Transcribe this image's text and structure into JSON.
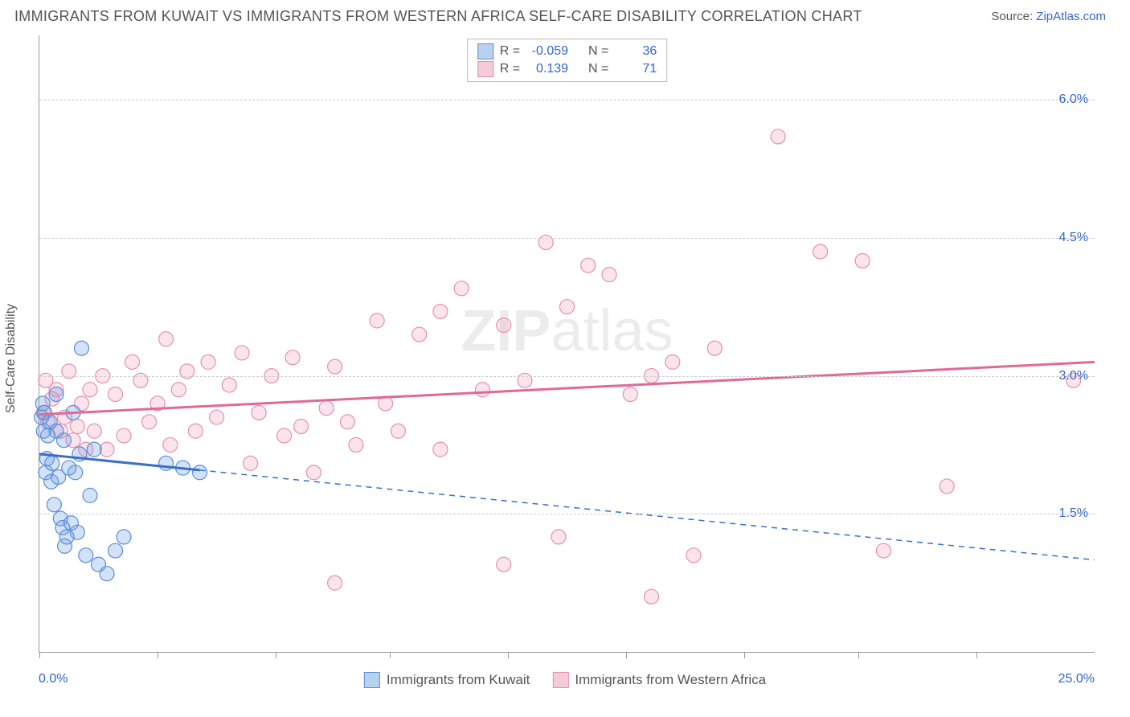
{
  "title": "IMMIGRANTS FROM KUWAIT VS IMMIGRANTS FROM WESTERN AFRICA SELF-CARE DISABILITY CORRELATION CHART",
  "source_label": "Source:",
  "source_name": "ZipAtlas.com",
  "watermark_left": "ZIP",
  "watermark_right": "atlas",
  "ylabel": "Self-Care Disability",
  "chart": {
    "type": "scatter",
    "xlim": [
      0,
      25
    ],
    "ylim": [
      0,
      6.7
    ],
    "y_ticks": [
      1.5,
      3.0,
      4.5,
      6.0
    ],
    "y_tick_labels": [
      "1.5%",
      "3.0%",
      "4.5%",
      "6.0%"
    ],
    "x_ticks": [
      0,
      2.8,
      5.6,
      8.3,
      11.1,
      13.9,
      16.7,
      19.4,
      22.2
    ],
    "xmin_label": "0.0%",
    "xmax_label": "25.0%",
    "background_color": "#ffffff",
    "grid_color": "#cccccc",
    "axis_color": "#999999",
    "label_color": "#3366cc",
    "text_color": "#555555",
    "marker_radius": 9,
    "marker_stroke_width": 1.2,
    "series": [
      {
        "name": "Immigrants from Kuwait",
        "fill": "rgba(100,150,230,0.28)",
        "stroke": "#5b8fd6",
        "legend_swatch_fill": "#b9d1f0",
        "legend_swatch_border": "#5b8fd6",
        "R": "-0.059",
        "N": "36",
        "trend": {
          "y_at_x0": 2.15,
          "y_at_x25": 1.0,
          "solid_until_x": 3.8,
          "stroke": "#3b6fc8",
          "width": 3
        },
        "points": [
          [
            0.05,
            2.55
          ],
          [
            0.08,
            2.7
          ],
          [
            0.1,
            2.4
          ],
          [
            0.12,
            2.6
          ],
          [
            0.15,
            1.95
          ],
          [
            0.18,
            2.1
          ],
          [
            0.2,
            2.35
          ],
          [
            0.25,
            2.5
          ],
          [
            0.28,
            1.85
          ],
          [
            0.3,
            2.05
          ],
          [
            0.35,
            1.6
          ],
          [
            0.4,
            2.4
          ],
          [
            0.4,
            2.8
          ],
          [
            0.45,
            1.9
          ],
          [
            0.5,
            1.45
          ],
          [
            0.55,
            1.35
          ],
          [
            0.58,
            2.3
          ],
          [
            0.6,
            1.15
          ],
          [
            0.65,
            1.25
          ],
          [
            0.7,
            2.0
          ],
          [
            0.75,
            1.4
          ],
          [
            0.8,
            2.6
          ],
          [
            0.85,
            1.95
          ],
          [
            0.9,
            1.3
          ],
          [
            0.95,
            2.15
          ],
          [
            1.0,
            3.3
          ],
          [
            1.1,
            1.05
          ],
          [
            1.2,
            1.7
          ],
          [
            1.3,
            2.2
          ],
          [
            1.4,
            0.95
          ],
          [
            1.6,
            0.85
          ],
          [
            1.8,
            1.1
          ],
          [
            2.0,
            1.25
          ],
          [
            3.0,
            2.05
          ],
          [
            3.4,
            2.0
          ],
          [
            3.8,
            1.95
          ]
        ]
      },
      {
        "name": "Immigrants from Western Africa",
        "fill": "rgba(240,130,170,0.22)",
        "stroke": "#e78fb0",
        "legend_swatch_fill": "#f6cbd9",
        "legend_swatch_border": "#e78fb0",
        "R": "0.139",
        "N": "71",
        "trend": {
          "y_at_x0": 2.58,
          "y_at_x25": 3.15,
          "solid_until_x": 25,
          "stroke": "#e06a96",
          "width": 3
        },
        "points": [
          [
            0.1,
            2.6
          ],
          [
            0.15,
            2.95
          ],
          [
            0.2,
            2.5
          ],
          [
            0.3,
            2.75
          ],
          [
            0.4,
            2.85
          ],
          [
            0.5,
            2.4
          ],
          [
            0.6,
            2.55
          ],
          [
            0.7,
            3.05
          ],
          [
            0.8,
            2.3
          ],
          [
            0.9,
            2.45
          ],
          [
            1.0,
            2.7
          ],
          [
            1.1,
            2.2
          ],
          [
            1.2,
            2.85
          ],
          [
            1.3,
            2.4
          ],
          [
            1.5,
            3.0
          ],
          [
            1.6,
            2.2
          ],
          [
            1.8,
            2.8
          ],
          [
            2.0,
            2.35
          ],
          [
            2.2,
            3.15
          ],
          [
            2.4,
            2.95
          ],
          [
            2.6,
            2.5
          ],
          [
            2.8,
            2.7
          ],
          [
            3.0,
            3.4
          ],
          [
            3.1,
            2.25
          ],
          [
            3.3,
            2.85
          ],
          [
            3.5,
            3.05
          ],
          [
            3.7,
            2.4
          ],
          [
            4.0,
            3.15
          ],
          [
            4.2,
            2.55
          ],
          [
            4.5,
            2.9
          ],
          [
            4.8,
            3.25
          ],
          [
            5.0,
            2.05
          ],
          [
            5.2,
            2.6
          ],
          [
            5.5,
            3.0
          ],
          [
            5.8,
            2.35
          ],
          [
            6.0,
            3.2
          ],
          [
            6.2,
            2.45
          ],
          [
            6.5,
            1.95
          ],
          [
            6.8,
            2.65
          ],
          [
            7.0,
            3.1
          ],
          [
            7.0,
            0.75
          ],
          [
            7.3,
            2.5
          ],
          [
            7.5,
            2.25
          ],
          [
            8.0,
            3.6
          ],
          [
            8.2,
            2.7
          ],
          [
            8.5,
            2.4
          ],
          [
            9.0,
            3.45
          ],
          [
            9.5,
            3.7
          ],
          [
            9.5,
            2.2
          ],
          [
            10.0,
            3.95
          ],
          [
            10.5,
            2.85
          ],
          [
            11.0,
            3.55
          ],
          [
            11.0,
            0.95
          ],
          [
            11.5,
            2.95
          ],
          [
            12.0,
            4.45
          ],
          [
            12.3,
            1.25
          ],
          [
            12.5,
            3.75
          ],
          [
            13.0,
            4.2
          ],
          [
            13.5,
            4.1
          ],
          [
            14.0,
            2.8
          ],
          [
            14.5,
            3.0
          ],
          [
            14.5,
            0.6
          ],
          [
            15.0,
            3.15
          ],
          [
            15.5,
            1.05
          ],
          [
            16.0,
            3.3
          ],
          [
            17.5,
            5.6
          ],
          [
            18.5,
            4.35
          ],
          [
            19.5,
            4.25
          ],
          [
            20.0,
            1.1
          ],
          [
            21.5,
            1.8
          ],
          [
            24.5,
            2.95
          ]
        ]
      }
    ]
  },
  "legend_top": {
    "R_label": "R =",
    "N_label": "N ="
  }
}
